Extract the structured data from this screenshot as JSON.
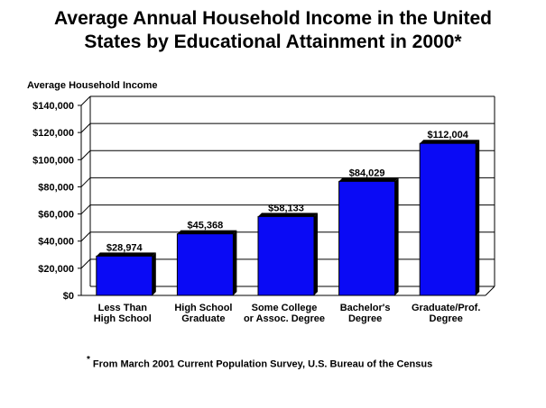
{
  "chart_data": {
    "type": "bar",
    "title_lines": [
      "Average Annual Household Income in the United",
      "States by Educational Attainment in 2000*"
    ],
    "ylabel": "Average Household Income",
    "categories": [
      [
        "Less Than",
        "High School"
      ],
      [
        "High School",
        "Graduate"
      ],
      [
        "Some College",
        "or Assoc. Degree"
      ],
      [
        "Bachelor's",
        "Degree"
      ],
      [
        "Graduate/Prof.",
        "Degree"
      ]
    ],
    "values": [
      28974,
      45368,
      58133,
      84029,
      112004
    ],
    "data_labels": [
      "$28,974",
      "$45,368",
      "$58,133",
      "$84,029",
      "$112,004"
    ],
    "ylim": [
      0,
      140000
    ],
    "yticks": [
      0,
      20000,
      40000,
      60000,
      80000,
      100000,
      120000,
      140000
    ],
    "ytick_labels": [
      "$0",
      "$20,000",
      "$40,000",
      "$60,000",
      "$80,000",
      "$100,000",
      "$120,000",
      "$140,000"
    ],
    "grid": true,
    "bar_color": "#0a0af5",
    "footnote_marker": "*",
    "footnote": "From March 2001 Current Population Survey, U.S. Bureau of the Census"
  }
}
